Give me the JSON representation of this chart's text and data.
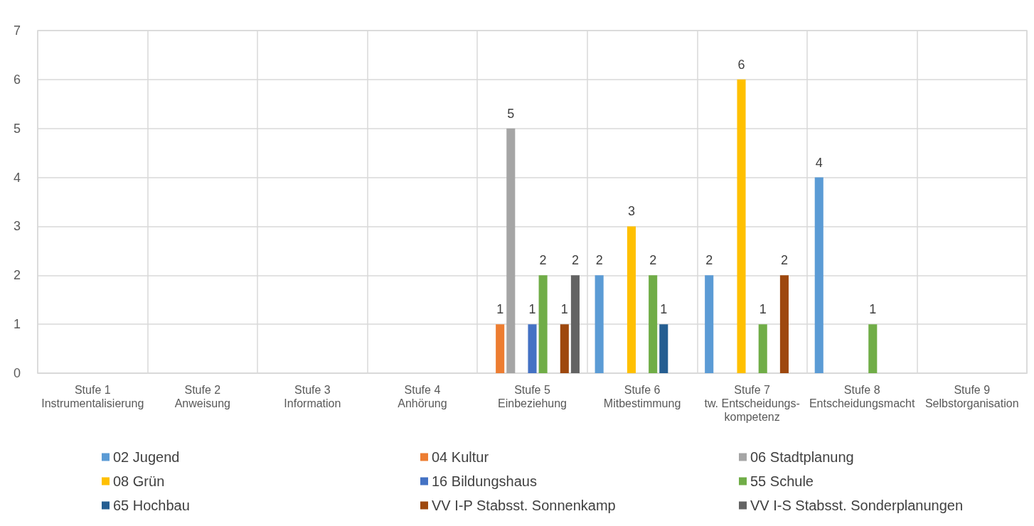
{
  "chart_data": {
    "type": "bar",
    "categories": [
      "Stufe 1\nInstrumentalisierung",
      "Stufe 2\nAnweisung",
      "Stufe 3\nInformation",
      "Stufe 4\nAnhörung",
      "Stufe 5\nEinbeziehung",
      "Stufe 6\nMitbestimmung",
      "Stufe 7\ntw. Entscheidungs-\nkompetenz",
      "Stufe 8\nEntscheidungsmacht",
      "Stufe 9\nSelbstorganisation"
    ],
    "series": [
      {
        "name": "02 Jugend",
        "color": "#5b9bd5",
        "values": [
          null,
          null,
          null,
          null,
          null,
          2,
          2,
          4,
          null
        ]
      },
      {
        "name": "04 Kultur",
        "color": "#ed7d31",
        "values": [
          null,
          null,
          null,
          null,
          1,
          null,
          null,
          null,
          null
        ]
      },
      {
        "name": "06 Stadtplanung",
        "color": "#a5a5a5",
        "values": [
          null,
          null,
          null,
          null,
          5,
          null,
          null,
          null,
          null
        ]
      },
      {
        "name": "08 Grün",
        "color": "#ffc000",
        "values": [
          null,
          null,
          null,
          null,
          null,
          3,
          6,
          null,
          null
        ]
      },
      {
        "name": "16 Bildungshaus",
        "color": "#4472c4",
        "values": [
          null,
          null,
          null,
          null,
          1,
          null,
          null,
          null,
          null
        ]
      },
      {
        "name": "55 Schule",
        "color": "#70ad47",
        "values": [
          null,
          null,
          null,
          null,
          2,
          2,
          1,
          1,
          null
        ]
      },
      {
        "name": "65 Hochbau",
        "color": "#255e91",
        "values": [
          null,
          null,
          null,
          null,
          null,
          1,
          null,
          null,
          null
        ]
      },
      {
        "name": "VV I-P Stabsst. Sonnenkamp",
        "color": "#9e480e",
        "values": [
          null,
          null,
          null,
          null,
          1,
          null,
          2,
          null,
          null
        ]
      },
      {
        "name": "VV I-S Stabsst. Sonderplanungen",
        "color": "#636363",
        "values": [
          null,
          null,
          null,
          null,
          2,
          null,
          null,
          null,
          null
        ]
      }
    ],
    "ylim": [
      0,
      7
    ],
    "yticks": [
      0,
      1,
      2,
      3,
      4,
      5,
      6,
      7
    ],
    "grid": true,
    "legend": "bottom",
    "data_labels": true
  }
}
